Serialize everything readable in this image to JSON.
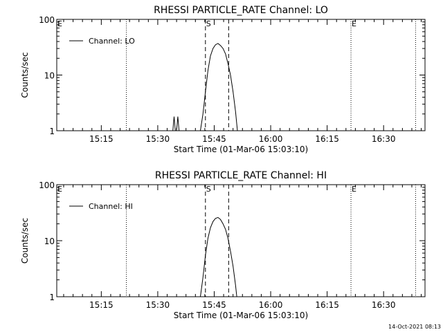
{
  "timestamp": "14-Oct-2021 08:13",
  "chart_data": [
    {
      "type": "line",
      "title": "RHESSI PARTICLE_RATE Channel: LO",
      "xlabel": "Start Time (01-Mar-06 15:03:10)",
      "ylabel": "Counts/sec",
      "yscale": "log",
      "ylim": [
        1,
        100
      ],
      "xlim": [
        "15:03:10",
        "16:41:00"
      ],
      "xticks": [
        "15:15",
        "15:30",
        "15:45",
        "16:00",
        "16:15",
        "16:30"
      ],
      "yticks": [
        "1",
        "10",
        "100"
      ],
      "legend": {
        "label": "Channel: LO",
        "placement": "top-left"
      },
      "markers": [
        {
          "label": "E",
          "time": "15:03:10",
          "style": "none"
        },
        {
          "label": "",
          "time": "15:21:40",
          "style": "dotted"
        },
        {
          "label": "S",
          "time": "15:42:40",
          "style": "dashed"
        },
        {
          "label": "",
          "time": "15:48:50",
          "style": "dashed"
        },
        {
          "label": "E",
          "time": "16:21:20",
          "style": "dotted"
        },
        {
          "label": "",
          "time": "16:38:30",
          "style": "dotted"
        }
      ],
      "series": [
        {
          "name": "Channel: LO",
          "segments": [
            [
              [
                "15:34:00",
                1.0
              ],
              [
                "15:34:20",
                1.8
              ],
              [
                "15:34:40",
                1.0
              ]
            ],
            [
              [
                "15:35:00",
                1.0
              ],
              [
                "15:35:20",
                1.8
              ],
              [
                "15:35:40",
                1.0
              ]
            ],
            [
              [
                "15:41:20",
                1.0
              ],
              [
                "15:42:00",
                2.0
              ],
              [
                "15:42:40",
                5.0
              ],
              [
                "15:43:20",
                12
              ],
              [
                "15:44:00",
                22
              ],
              [
                "15:44:40",
                30
              ],
              [
                "15:45:20",
                35
              ],
              [
                "15:46:00",
                37
              ],
              [
                "15:46:40",
                34
              ],
              [
                "15:47:20",
                30
              ],
              [
                "15:48:00",
                24
              ],
              [
                "15:48:40",
                16
              ],
              [
                "15:49:20",
                10
              ],
              [
                "15:50:00",
                5
              ],
              [
                "15:50:40",
                2.2
              ],
              [
                "15:51:10",
                1.0
              ]
            ]
          ]
        }
      ]
    },
    {
      "type": "line",
      "title": "RHESSI PARTICLE_RATE Channel: HI",
      "xlabel": "Start Time (01-Mar-06 15:03:10)",
      "ylabel": "Counts/sec",
      "yscale": "log",
      "ylim": [
        1,
        100
      ],
      "xlim": [
        "15:03:10",
        "16:41:00"
      ],
      "xticks": [
        "15:15",
        "15:30",
        "15:45",
        "16:00",
        "16:15",
        "16:30"
      ],
      "yticks": [
        "1",
        "10",
        "100"
      ],
      "legend": {
        "label": "Channel: HI",
        "placement": "top-left"
      },
      "markers": [
        {
          "label": "E",
          "time": "15:03:10",
          "style": "none"
        },
        {
          "label": "",
          "time": "15:21:40",
          "style": "dotted"
        },
        {
          "label": "S",
          "time": "15:42:40",
          "style": "dashed"
        },
        {
          "label": "",
          "time": "15:48:50",
          "style": "dashed"
        },
        {
          "label": "E",
          "time": "16:21:20",
          "style": "dotted"
        },
        {
          "label": "",
          "time": "16:38:30",
          "style": "dotted"
        }
      ],
      "series": [
        {
          "name": "Channel: HI",
          "segments": [
            [
              [
                "15:41:20",
                1.0
              ],
              [
                "15:42:00",
                2.2
              ],
              [
                "15:42:40",
                5.5
              ],
              [
                "15:43:20",
                11
              ],
              [
                "15:44:00",
                17
              ],
              [
                "15:44:40",
                22
              ],
              [
                "15:45:20",
                25
              ],
              [
                "15:46:00",
                26
              ],
              [
                "15:46:40",
                24
              ],
              [
                "15:47:20",
                20
              ],
              [
                "15:48:00",
                16
              ],
              [
                "15:48:40",
                11
              ],
              [
                "15:49:20",
                6.5
              ],
              [
                "15:50:00",
                3.5
              ],
              [
                "15:50:40",
                1.6
              ],
              [
                "15:51:00",
                1.0
              ]
            ]
          ]
        }
      ]
    }
  ]
}
